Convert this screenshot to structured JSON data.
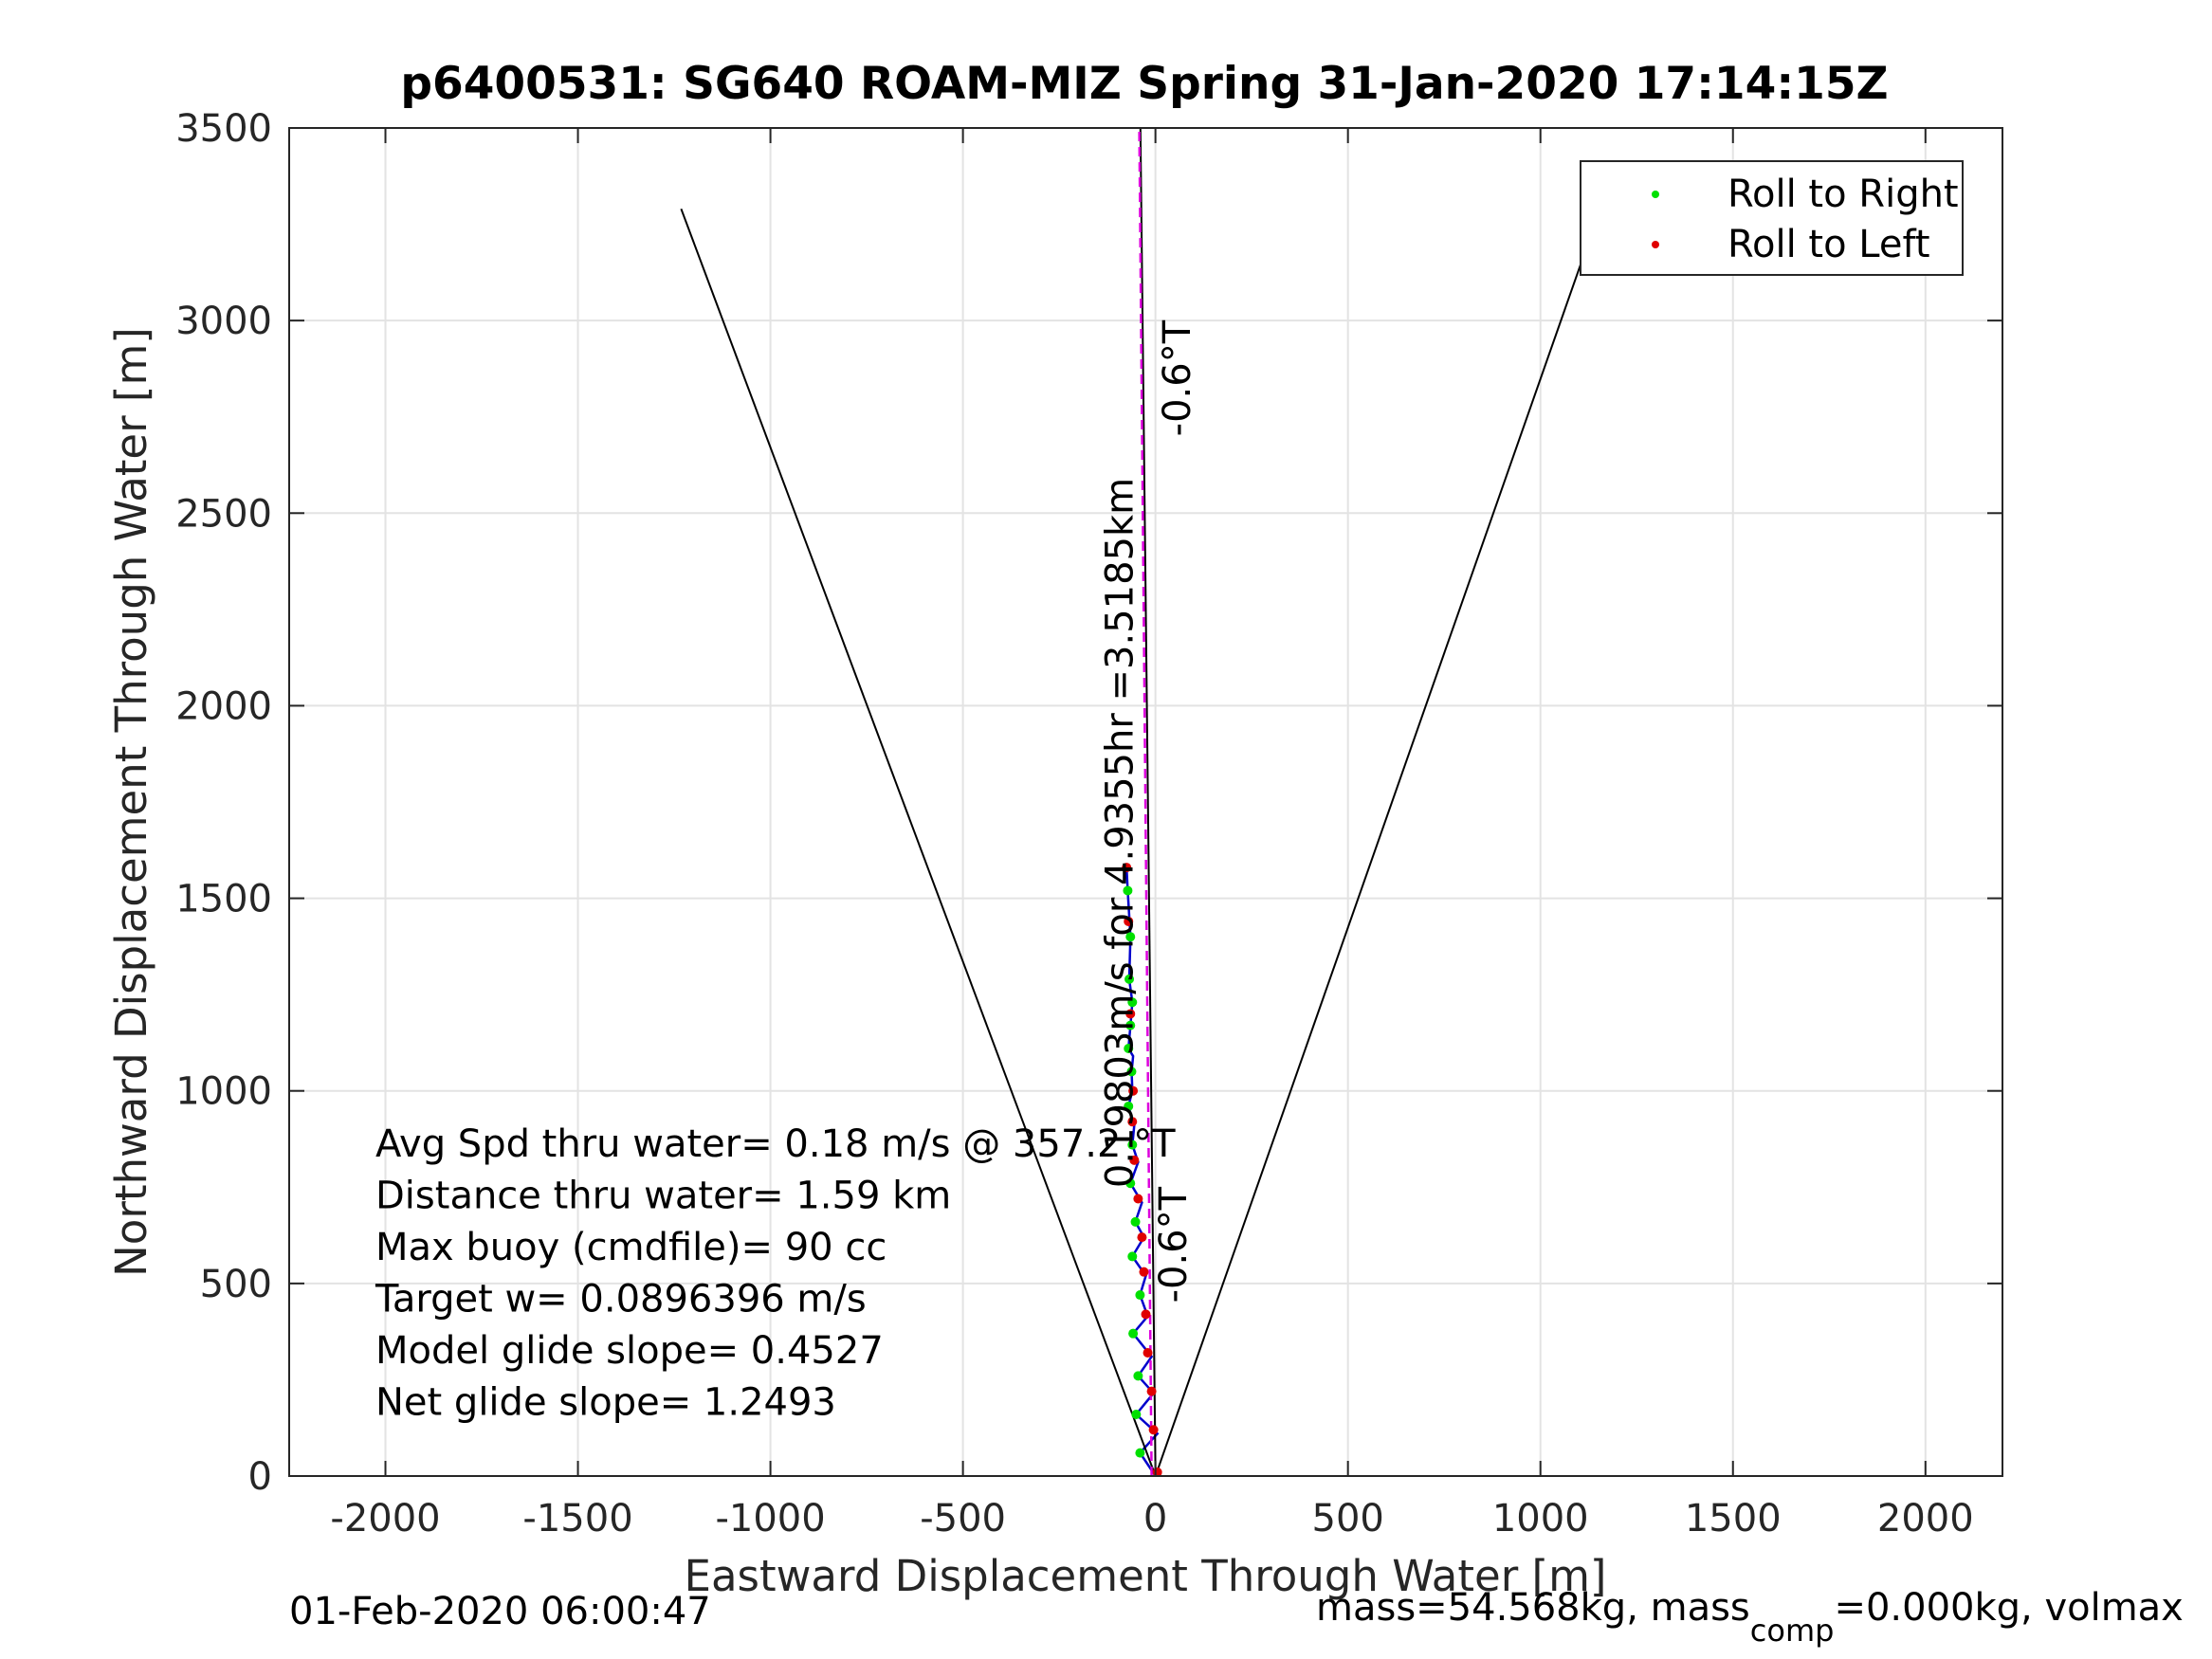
{
  "chart_data": {
    "type": "line",
    "title": "p6400531: SG640 ROAM-MIZ Spring 31-Jan-2020 17:14:15Z",
    "xlabel": "Eastward Displacement Through Water [m]",
    "ylabel": "Northward Displacement Through Water [m]",
    "xlim": [
      -2250,
      2200
    ],
    "ylim": [
      0,
      3500
    ],
    "x_ticks": [
      -2000,
      -1500,
      -1000,
      -500,
      0,
      500,
      1000,
      1500,
      2000
    ],
    "y_ticks": [
      0,
      500,
      1000,
      1500,
      2000,
      2500,
      3000,
      3500
    ],
    "x_tick_labels": [
      "-2000",
      "-1500",
      "-1000",
      "-500",
      "0",
      "500",
      "1000",
      "1500",
      "2000"
    ],
    "y_tick_labels": [
      "0",
      "500",
      "1000",
      "1500",
      "2000",
      "2500",
      "3000",
      "3500"
    ],
    "grid": true,
    "legend_position": "top-right",
    "series": [
      {
        "name": "Roll to Right",
        "type": "scatter",
        "color": "#00e000",
        "x": [
          -40,
          -50,
          -45,
          -58,
          -40,
          -60,
          -52,
          -65,
          -60,
          -70,
          -62,
          -70,
          -65,
          -60,
          -68,
          -65,
          -72
        ],
        "y": [
          60,
          160,
          260,
          370,
          470,
          570,
          660,
          760,
          860,
          960,
          1050,
          1110,
          1170,
          1230,
          1290,
          1400,
          1520
        ]
      },
      {
        "name": "Roll to Left",
        "type": "scatter",
        "color": "#e00000",
        "x": [
          5,
          -5,
          -10,
          -20,
          -25,
          -30,
          -35,
          -45,
          -55,
          -60,
          -58,
          -65,
          -70,
          -75
        ],
        "y": [
          10,
          120,
          220,
          320,
          420,
          530,
          620,
          720,
          820,
          920,
          1000,
          1200,
          1440,
          1580
        ]
      },
      {
        "name": "",
        "type": "line",
        "color": "#0000cc",
        "x": [
          0,
          -40,
          5,
          -50,
          -5,
          -45,
          -10,
          -58,
          -20,
          -40,
          -25,
          -60,
          -30,
          -52,
          -35,
          -65,
          -45,
          -60,
          -55,
          -70,
          -60,
          -62,
          -58,
          -70,
          -65,
          -60,
          -68,
          -65,
          -72,
          -75
        ],
        "y": [
          0,
          60,
          110,
          160,
          215,
          260,
          310,
          370,
          415,
          470,
          520,
          570,
          620,
          660,
          710,
          760,
          815,
          860,
          910,
          960,
          1000,
          1050,
          1090,
          1110,
          1170,
          1230,
          1290,
          1400,
          1520,
          1580
        ]
      },
      {
        "name": "",
        "type": "line",
        "color": "#000000",
        "x": [
          0,
          -1232
        ],
        "y": [
          0,
          3290
        ]
      },
      {
        "name": "",
        "type": "line",
        "color": "#000000",
        "x": [
          0,
          1162
        ],
        "y": [
          0,
          3310
        ]
      },
      {
        "name": "",
        "type": "line",
        "color": "#000000",
        "x": [
          0,
          -39
        ],
        "y": [
          0,
          3500
        ]
      },
      {
        "name": "",
        "type": "line",
        "color": "#dd00dd",
        "x": [
          -10,
          -42
        ],
        "y": [
          0,
          3500
        ]
      }
    ],
    "annotations": [
      {
        "text": "-0.6°T",
        "x": 90,
        "y": 2850,
        "rotation": -90
      },
      {
        "text": "-0.6°T",
        "x": 80,
        "y": 600,
        "rotation": -90
      },
      {
        "text": "0.19803m/s for 4.9355hr =3.5185km",
        "x": -60,
        "y": 1670,
        "rotation": -90
      }
    ]
  },
  "stats_lines": [
    "Avg Spd thru water=  0.18 m/s @ 357.2 °T",
    "Distance thru water=  1.59 km",
    "Max buoy (cmdfile)= 90 cc",
    "Target w= 0.0896396 m/s",
    "Model glide slope= 0.4527",
    "Net glide slope= 1.2493"
  ],
  "footer": {
    "timestamp": "01-Feb-2020 06:00:47",
    "mass_prefix": "mass=54.568kg, mass",
    "mass_sub": "comp",
    "mass_suffix": "=0.000kg, volmax"
  }
}
